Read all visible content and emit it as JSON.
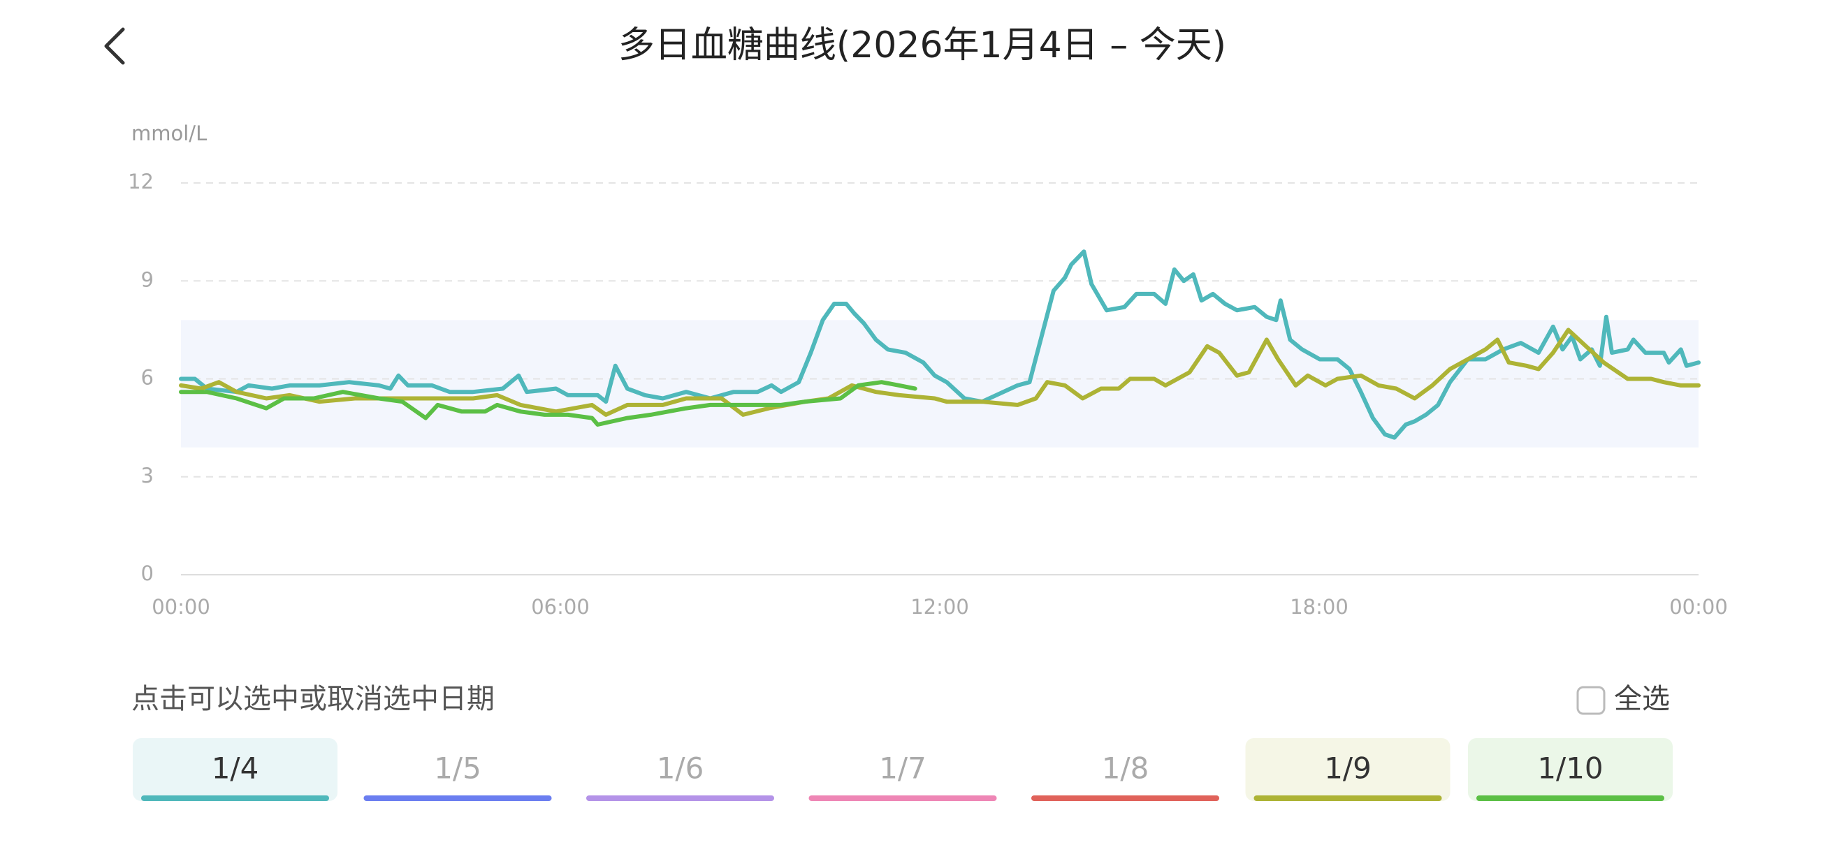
{
  "chart_data": {
    "type": "line",
    "title": "多日血糖曲线(2026年1月4日 – 今天)",
    "y_label": "mmol/L",
    "xlim": [
      0,
      24
    ],
    "xticks": [
      {
        "value": 0,
        "label": "00:00"
      },
      {
        "value": 6,
        "label": "06:00"
      },
      {
        "value": 12,
        "label": "12:00"
      },
      {
        "value": 18,
        "label": "18:00"
      },
      {
        "value": 24,
        "label": "00:00"
      }
    ],
    "ylim": [
      0,
      12
    ],
    "yticks": [
      0,
      3,
      6,
      9,
      12
    ],
    "grid": true,
    "target_range": [
      3.9,
      7.8
    ],
    "target_color": "#f3f6fd",
    "series": [
      {
        "name": "1/4",
        "color": "#4fb8bb",
        "selected": true,
        "x": [
          0,
          0.22,
          0.41,
          0.88,
          1.07,
          1.44,
          1.72,
          2.19,
          2.66,
          3.13,
          3.31,
          3.44,
          3.59,
          3.97,
          4.25,
          4.62,
          5.09,
          5.34,
          5.47,
          5.93,
          6.12,
          6.59,
          6.72,
          6.87,
          7.06,
          7.34,
          7.62,
          7.99,
          8.37,
          8.74,
          9.12,
          9.34,
          9.49,
          9.77,
          9.96,
          10.15,
          10.33,
          10.52,
          10.65,
          10.8,
          10.99,
          11.18,
          11.46,
          11.74,
          11.92,
          12.11,
          12.39,
          12.67,
          13.23,
          13.42,
          13.61,
          13.8,
          13.98,
          14.08,
          14.28,
          14.4,
          14.64,
          14.92,
          15.11,
          15.39,
          15.57,
          15.71,
          15.86,
          16.01,
          16.14,
          16.32,
          16.51,
          16.7,
          16.98,
          17.17,
          17.32,
          17.39,
          17.54,
          17.73,
          18.01,
          18.29,
          18.48,
          18.66,
          18.85,
          19.04,
          19.19,
          19.37,
          19.51,
          19.69,
          19.88,
          20.07,
          20.35,
          20.63,
          20.91,
          21.19,
          21.47,
          21.7,
          21.85,
          22.0,
          22.13,
          22.31,
          22.44,
          22.54,
          22.63,
          22.88,
          22.97,
          23.16,
          23.45,
          23.53,
          23.72,
          23.81,
          24
        ],
        "values": [
          6.0,
          6.0,
          5.7,
          5.6,
          5.8,
          5.7,
          5.8,
          5.8,
          5.9,
          5.8,
          5.7,
          6.1,
          5.8,
          5.8,
          5.6,
          5.6,
          5.7,
          6.1,
          5.6,
          5.7,
          5.5,
          5.5,
          5.3,
          6.4,
          5.7,
          5.5,
          5.4,
          5.6,
          5.4,
          5.6,
          5.6,
          5.8,
          5.6,
          5.9,
          6.8,
          7.8,
          8.3,
          8.3,
          8.0,
          7.7,
          7.2,
          6.9,
          6.8,
          6.5,
          6.1,
          5.9,
          5.4,
          5.3,
          5.8,
          5.9,
          7.3,
          8.7,
          9.1,
          9.5,
          9.9,
          8.9,
          8.1,
          8.2,
          8.6,
          8.6,
          8.3,
          9.35,
          9.0,
          9.2,
          8.4,
          8.6,
          8.3,
          8.1,
          8.2,
          7.9,
          7.8,
          8.4,
          7.2,
          6.9,
          6.6,
          6.6,
          6.3,
          5.6,
          4.8,
          4.3,
          4.2,
          4.6,
          4.7,
          4.9,
          5.2,
          5.9,
          6.6,
          6.6,
          6.9,
          7.1,
          6.8,
          7.6,
          6.9,
          7.3,
          6.6,
          6.9,
          6.4,
          7.9,
          6.8,
          6.9,
          7.2,
          6.8,
          6.8,
          6.5,
          6.9,
          6.4,
          6.5
        ]
      },
      {
        "name": "1/5",
        "color": "#6b7ef0",
        "selected": false,
        "x": [],
        "values": []
      },
      {
        "name": "1/6",
        "color": "#b493e8",
        "selected": false,
        "x": [],
        "values": []
      },
      {
        "name": "1/7",
        "color": "#ee86b5",
        "selected": false,
        "x": [],
        "values": []
      },
      {
        "name": "1/8",
        "color": "#e0625a",
        "selected": false,
        "x": [],
        "values": []
      },
      {
        "name": "1/9",
        "color": "#adb335",
        "selected": true,
        "x": [
          0,
          0.32,
          0.6,
          0.88,
          1.35,
          1.72,
          2.19,
          2.75,
          3.31,
          3.87,
          4.62,
          5.0,
          5.37,
          5.93,
          6.5,
          6.72,
          7.06,
          7.62,
          7.99,
          8.55,
          8.89,
          9.3,
          9.87,
          10.24,
          10.61,
          10.99,
          11.36,
          11.92,
          12.11,
          12.67,
          13.23,
          13.52,
          13.7,
          13.98,
          14.26,
          14.55,
          14.83,
          15.01,
          15.39,
          15.57,
          15.76,
          15.95,
          16.23,
          16.42,
          16.7,
          16.89,
          17.17,
          17.35,
          17.63,
          17.82,
          18.1,
          18.29,
          18.66,
          18.94,
          19.22,
          19.51,
          19.79,
          20.07,
          20.35,
          20.63,
          20.82,
          21.0,
          21.28,
          21.47,
          21.7,
          21.94,
          22.22,
          22.5,
          22.88,
          23.25,
          23.45,
          23.72,
          24
        ],
        "values": [
          5.8,
          5.7,
          5.9,
          5.6,
          5.4,
          5.5,
          5.3,
          5.4,
          5.4,
          5.4,
          5.4,
          5.5,
          5.2,
          5.0,
          5.2,
          4.9,
          5.2,
          5.2,
          5.4,
          5.4,
          4.9,
          5.1,
          5.3,
          5.4,
          5.8,
          5.6,
          5.5,
          5.4,
          5.3,
          5.3,
          5.2,
          5.4,
          5.9,
          5.8,
          5.4,
          5.7,
          5.7,
          6.0,
          6.0,
          5.8,
          6.0,
          6.2,
          7.0,
          6.8,
          6.1,
          6.2,
          7.2,
          6.6,
          5.8,
          6.1,
          5.8,
          6.0,
          6.1,
          5.8,
          5.7,
          5.4,
          5.8,
          6.3,
          6.6,
          6.9,
          7.2,
          6.5,
          6.4,
          6.3,
          6.8,
          7.5,
          7.0,
          6.5,
          6.0,
          6.0,
          5.9,
          5.8,
          5.8
        ]
      },
      {
        "name": "1/10",
        "color": "#5bbf45",
        "selected": true,
        "x": [
          0,
          0.41,
          0.88,
          1.35,
          1.63,
          2.1,
          2.56,
          3.13,
          3.5,
          3.87,
          4.06,
          4.44,
          4.81,
          5.0,
          5.37,
          5.75,
          6.12,
          6.5,
          6.59,
          7.06,
          7.43,
          7.99,
          8.37,
          9.12,
          9.49,
          9.87,
          10.43,
          10.71,
          11.08,
          11.36,
          11.61
        ],
        "values": [
          5.6,
          5.6,
          5.4,
          5.1,
          5.4,
          5.4,
          5.6,
          5.4,
          5.3,
          4.8,
          5.2,
          5.0,
          5.0,
          5.2,
          5.0,
          4.9,
          4.9,
          4.8,
          4.6,
          4.8,
          4.9,
          5.1,
          5.2,
          5.2,
          5.2,
          5.3,
          5.4,
          5.8,
          5.9,
          5.8,
          5.7
        ]
      }
    ]
  },
  "hint": "点击可以选中或取消选中日期",
  "select_all": "全选"
}
